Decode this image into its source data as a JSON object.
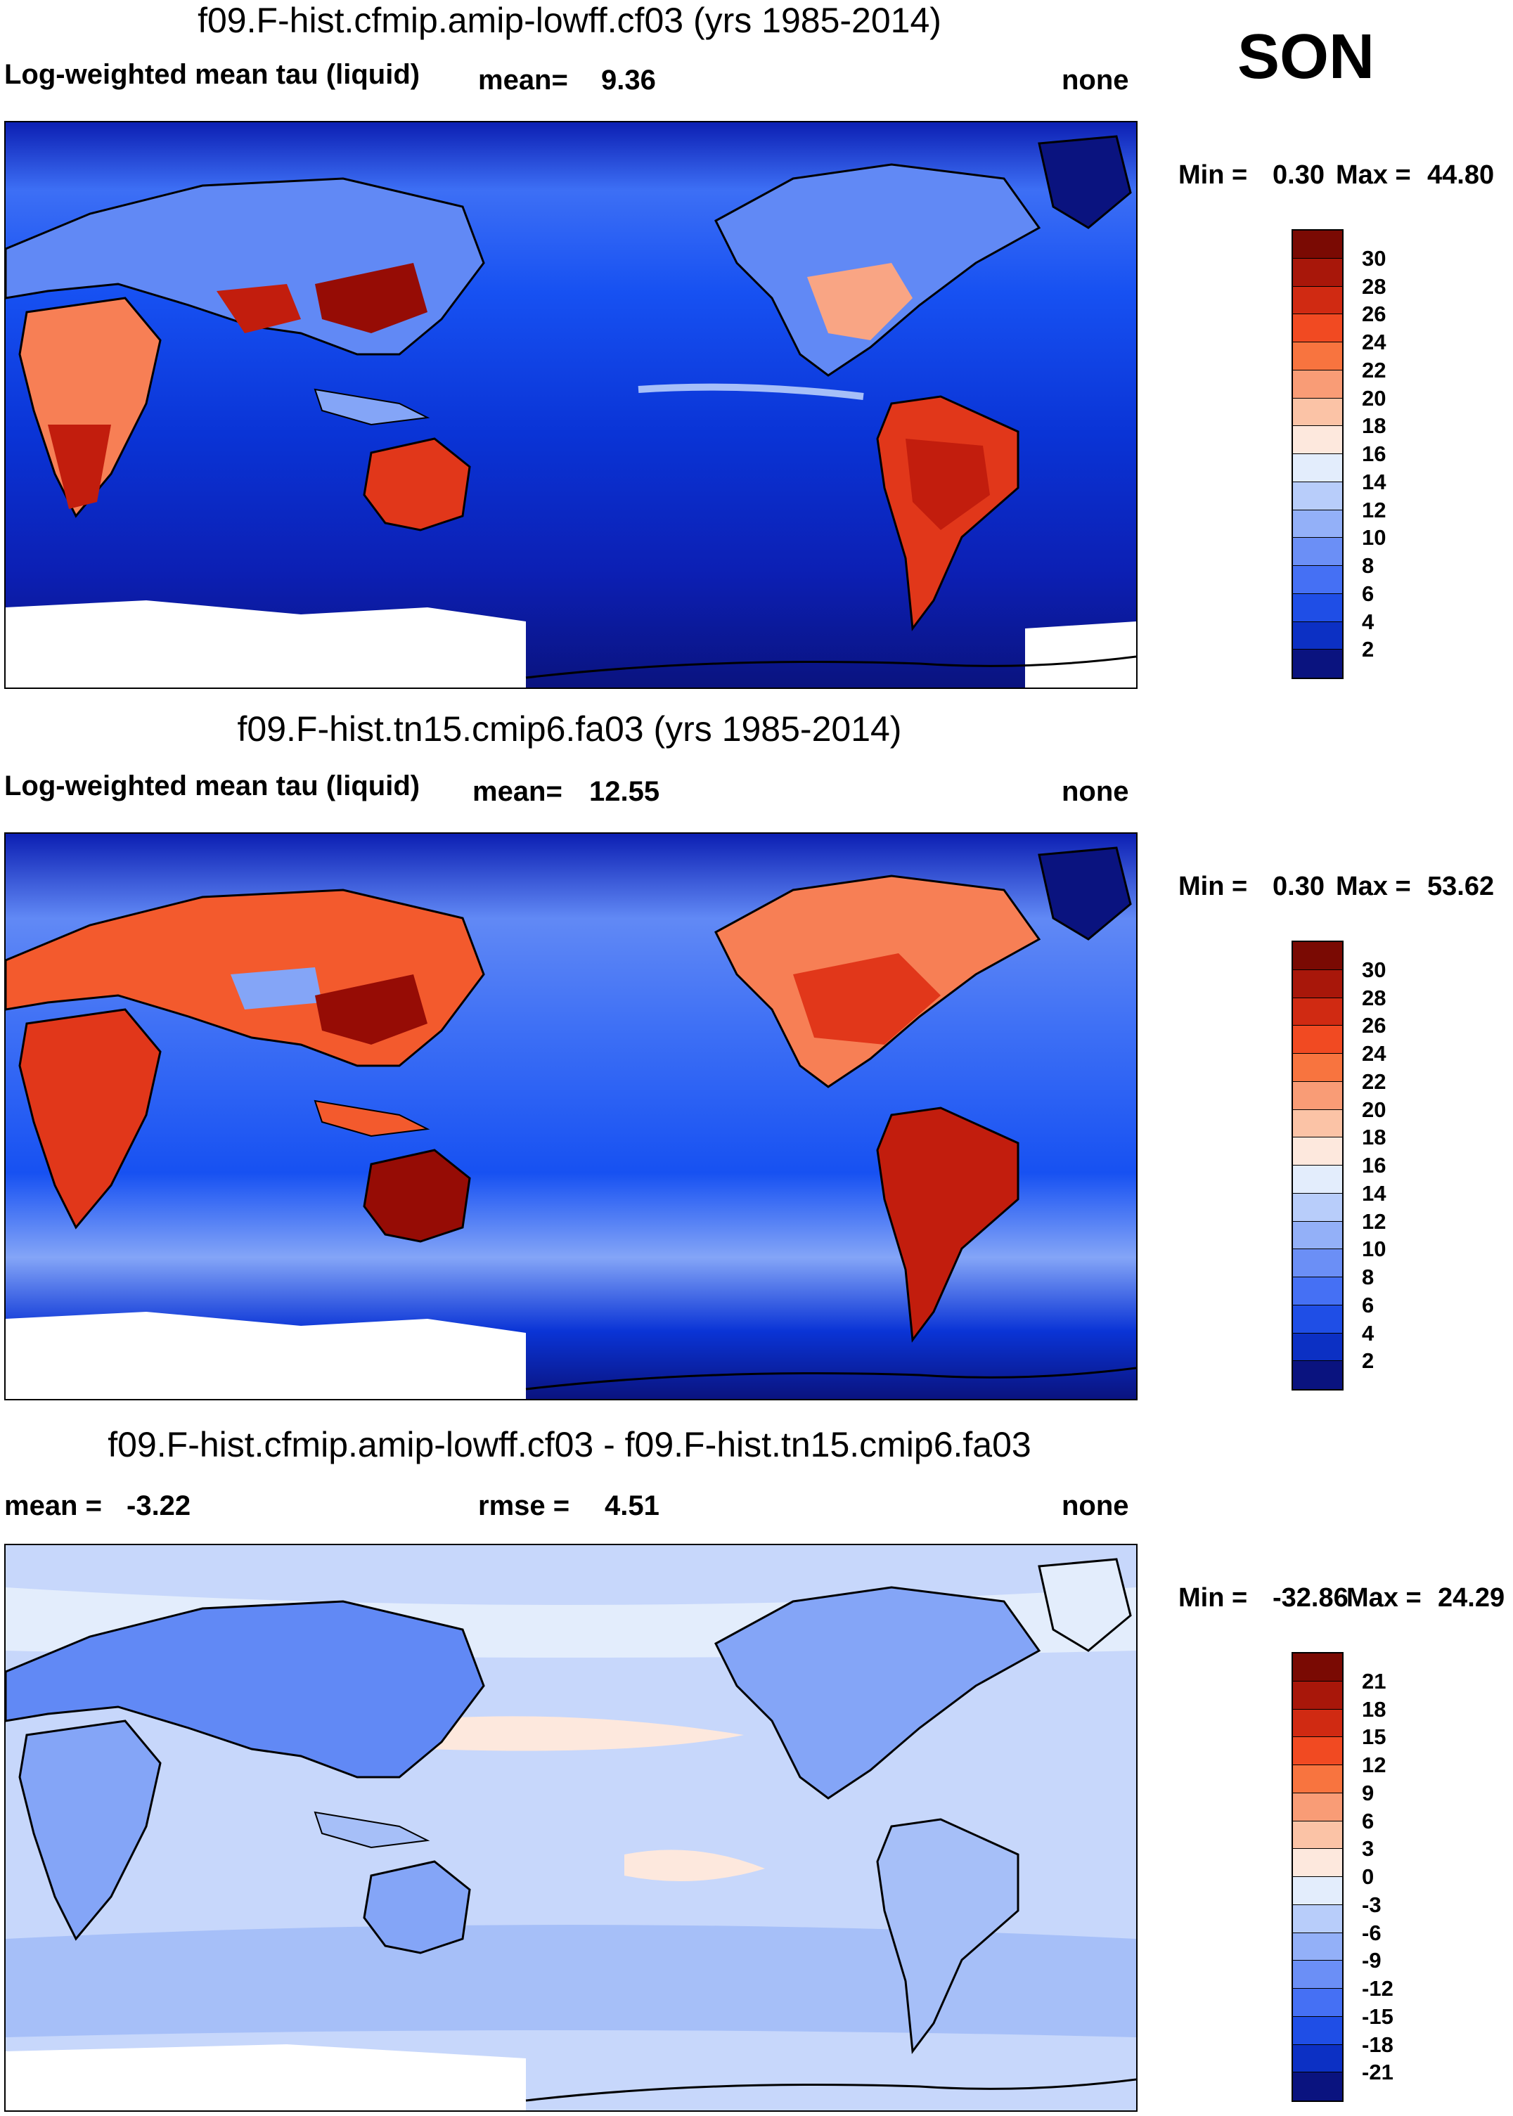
{
  "season": "SON",
  "colors": {
    "div": [
      "#0a137f",
      "#0c1fb3",
      "#0a34d6",
      "#1751f2",
      "#3d6ff5",
      "#6189f5",
      "#84a5f7",
      "#a6bff8",
      "#c7d7fb",
      "#e3edfc",
      "#fde8dd",
      "#fbc8ae",
      "#f9a584",
      "#f77f55",
      "#f35a2d",
      "#e1371a",
      "#c21d0d",
      "#960c05"
    ],
    "ocean": "#1e47e0",
    "snow": "#ffffff",
    "coast": "#000000"
  },
  "panels": [
    {
      "title": "f09.F-hist.cfmip.amip-lowff.cf03 (yrs 1985-2014)",
      "left_label": "Log-weighted mean tau (liquid)",
      "mean_label": "mean=",
      "mean_value": "9.36",
      "units": "none",
      "min_label": "Min =",
      "min_value": "0.30",
      "max_label": "Max =",
      "max_value": "44.80",
      "colorbar_labels": [
        "30",
        "28",
        "26",
        "24",
        "22",
        "20",
        "18",
        "16",
        "14",
        "12",
        "10",
        "8",
        "6",
        "4",
        "2"
      ]
    },
    {
      "title": "f09.F-hist.tn15.cmip6.fa03 (yrs 1985-2014)",
      "left_label": "Log-weighted mean tau (liquid)",
      "mean_label": "mean=",
      "mean_value": "12.55",
      "units": "none",
      "min_label": "Min =",
      "min_value": "0.30",
      "max_label": "Max =",
      "max_value": "53.62",
      "colorbar_labels": [
        "30",
        "28",
        "26",
        "24",
        "22",
        "20",
        "18",
        "16",
        "14",
        "12",
        "10",
        "8",
        "6",
        "4",
        "2"
      ]
    },
    {
      "title": "f09.F-hist.cfmip.amip-lowff.cf03 - f09.F-hist.tn15.cmip6.fa03",
      "mean_label": "mean =",
      "mean_value": "-3.22",
      "rmse_label": "rmse =",
      "rmse_value": "4.51",
      "units": "none",
      "min_label": "Min =",
      "min_value": "-32.86",
      "max_label": "Max =",
      "max_value": "24.29",
      "colorbar_labels": [
        "21",
        "18",
        "15",
        "12",
        "9",
        "6",
        "3",
        "0",
        "-3",
        "-6",
        "-9",
        "-12",
        "-15",
        "-18",
        "-21"
      ]
    }
  ],
  "chart_data": [
    {
      "type": "heatmap",
      "title": "f09.F-hist.cfmip.amip-lowff.cf03 (yrs 1985-2014)",
      "variable": "Log-weighted mean tau (liquid)",
      "mean": 9.36,
      "min": 0.3,
      "max": 44.8,
      "units": "none",
      "levels": [
        2,
        4,
        6,
        8,
        10,
        12,
        14,
        16,
        18,
        20,
        22,
        24,
        26,
        28,
        30
      ],
      "xlabel": "",
      "ylabel": ""
    },
    {
      "type": "heatmap",
      "title": "f09.F-hist.tn15.cmip6.fa03 (yrs 1985-2014)",
      "variable": "Log-weighted mean tau (liquid)",
      "mean": 12.55,
      "min": 0.3,
      "max": 53.62,
      "units": "none",
      "levels": [
        2,
        4,
        6,
        8,
        10,
        12,
        14,
        16,
        18,
        20,
        22,
        24,
        26,
        28,
        30
      ],
      "xlabel": "",
      "ylabel": ""
    },
    {
      "type": "heatmap",
      "title": "f09.F-hist.cfmip.amip-lowff.cf03 - f09.F-hist.tn15.cmip6.fa03",
      "variable": "difference",
      "mean": -3.22,
      "rmse": 4.51,
      "min": -32.86,
      "max": 24.29,
      "units": "none",
      "levels": [
        -21,
        -18,
        -15,
        -12,
        -9,
        -6,
        -3,
        0,
        3,
        6,
        9,
        12,
        15,
        18,
        21
      ],
      "xlabel": "",
      "ylabel": ""
    }
  ]
}
